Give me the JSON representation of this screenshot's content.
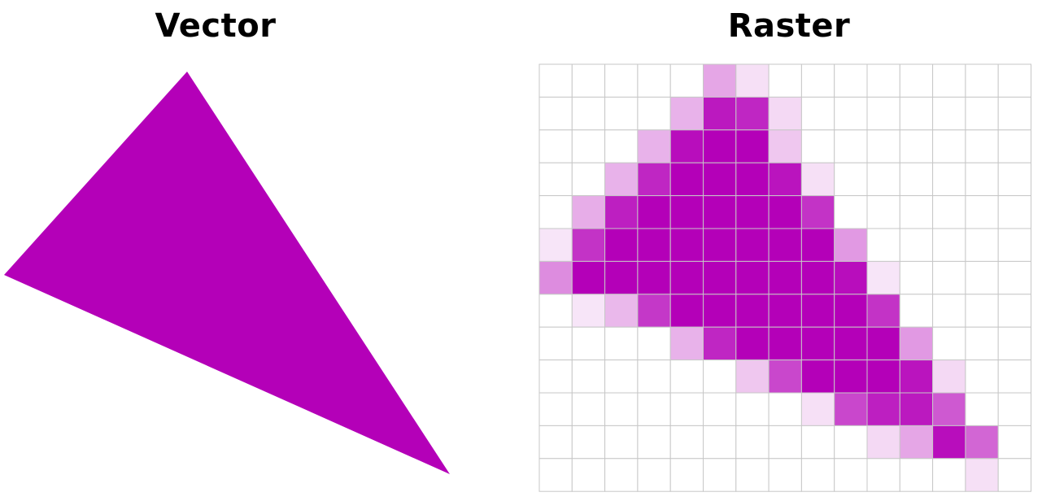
{
  "vector": {
    "title": "Vector",
    "fill_color": "#b400b8"
  },
  "raster": {
    "title": "Raster",
    "columns": 15,
    "rows": 13,
    "grid_line_color": "#c7c7c7",
    "background_color": "#ffffff",
    "base_color": "#b400b8",
    "cell_opacity": [
      [
        0,
        0,
        0,
        0,
        0,
        0.35,
        0.12,
        0,
        0,
        0,
        0,
        0,
        0,
        0,
        0
      ],
      [
        0,
        0,
        0,
        0,
        0.3,
        0.9,
        0.85,
        0.15,
        0,
        0,
        0,
        0,
        0,
        0,
        0
      ],
      [
        0,
        0,
        0,
        0.3,
        0.95,
        1,
        1,
        0.22,
        0,
        0,
        0,
        0,
        0,
        0,
        0
      ],
      [
        0,
        0,
        0.3,
        0.85,
        1,
        1,
        1,
        0.92,
        0.12,
        0,
        0,
        0,
        0,
        0,
        0
      ],
      [
        0,
        0.32,
        0.88,
        1,
        1,
        1,
        1,
        1,
        0.8,
        0,
        0,
        0,
        0,
        0,
        0
      ],
      [
        0.1,
        0.8,
        1,
        1,
        1,
        1,
        1,
        1,
        1,
        0.4,
        0,
        0,
        0,
        0,
        0
      ],
      [
        0.45,
        1,
        1,
        1,
        1,
        1,
        1,
        1,
        1,
        0.95,
        0.1,
        0,
        0,
        0,
        0
      ],
      [
        0,
        0.1,
        0.28,
        0.78,
        1,
        1,
        1,
        1,
        1,
        1,
        0.8,
        0,
        0,
        0,
        0
      ],
      [
        0,
        0,
        0,
        0,
        0.3,
        0.85,
        1,
        1,
        1,
        1,
        1,
        0.4,
        0,
        0,
        0
      ],
      [
        0,
        0,
        0,
        0,
        0,
        0,
        0.22,
        0.72,
        1,
        1,
        1,
        0.92,
        0.15,
        0,
        0
      ],
      [
        0,
        0,
        0,
        0,
        0,
        0,
        0,
        0,
        0.12,
        0.72,
        0.88,
        0.9,
        0.65,
        0,
        0
      ],
      [
        0,
        0,
        0,
        0,
        0,
        0,
        0,
        0,
        0,
        0,
        0.15,
        0.35,
        0.95,
        0.6,
        0
      ],
      [
        0,
        0,
        0,
        0,
        0,
        0,
        0,
        0,
        0,
        0,
        0,
        0,
        0,
        0.12,
        0
      ]
    ]
  }
}
